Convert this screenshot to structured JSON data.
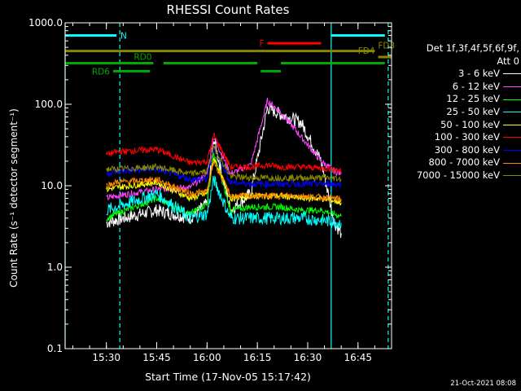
{
  "chart_data": {
    "type": "line",
    "title": "RHESSI Count Rates",
    "xlabel": "Start Time (17-Nov-05 15:17:42)",
    "ylabel": "Count Rate (s⁻¹ detector segment⁻¹)",
    "y_scale": "log",
    "xlim": [
      "15:17:42",
      "16:55:00"
    ],
    "ylim": [
      0.1,
      1000
    ],
    "x_ticks": [
      "15:30",
      "15:45",
      "16:00",
      "16:15",
      "16:30",
      "16:45"
    ],
    "y_ticks": [
      "0.1",
      "1.0",
      "10.0",
      "100.0",
      "1000.0"
    ],
    "legend_header": [
      "Det 1f,3f,4f,5f,6f,9f,",
      "Att 0"
    ],
    "legend_position": "right",
    "series": [
      {
        "name": "3 - 6 keV",
        "color": "#ffffff",
        "x": [
          "15:30",
          "15:33",
          "15:45",
          "15:55",
          "16:00",
          "16:02",
          "16:07",
          "16:13",
          "16:18",
          "16:22",
          "16:28",
          "16:34",
          "16:38",
          "16:40"
        ],
        "values": [
          3.5,
          3.8,
          5.0,
          4.0,
          6.0,
          38,
          5.0,
          8.0,
          90,
          75,
          60,
          20,
          3.5,
          2.6
        ]
      },
      {
        "name": "6 - 12 keV",
        "color": "#ff44ff",
        "x": [
          "15:30",
          "15:33",
          "15:45",
          "15:55",
          "16:00",
          "16:02",
          "16:07",
          "16:13",
          "16:18",
          "16:22",
          "16:28",
          "16:34",
          "16:38",
          "16:40"
        ],
        "values": [
          7.0,
          7.5,
          9.0,
          9.5,
          14,
          40,
          14,
          18,
          110,
          80,
          40,
          20,
          15,
          14
        ]
      },
      {
        "name": "12 - 25 keV",
        "color": "#00ff00",
        "x": [
          "15:30",
          "15:33",
          "15:45",
          "15:55",
          "16:00",
          "16:02",
          "16:07",
          "16:13",
          "16:18",
          "16:22",
          "16:28",
          "16:34",
          "16:38",
          "16:40"
        ],
        "values": [
          4.0,
          4.5,
          7.0,
          4.5,
          6.0,
          25,
          5.0,
          5.5,
          5.5,
          5.5,
          5.0,
          5.0,
          4.5,
          4.2
        ]
      },
      {
        "name": "25 - 50 keV",
        "color": "#00ffff",
        "x": [
          "15:30",
          "15:33",
          "15:45",
          "15:55",
          "16:00",
          "16:02",
          "16:07",
          "16:13",
          "16:18",
          "16:22",
          "16:28",
          "16:34",
          "16:38",
          "16:40"
        ],
        "values": [
          5.0,
          5.5,
          8.0,
          4.0,
          4.5,
          12,
          4.0,
          4.0,
          4.0,
          4.0,
          4.0,
          3.8,
          3.6,
          3.5
        ]
      },
      {
        "name": "50 - 100 keV",
        "color": "#ffff00",
        "x": [
          "15:30",
          "15:33",
          "15:45",
          "15:55",
          "16:00",
          "16:02",
          "16:07",
          "16:13",
          "16:18",
          "16:22",
          "16:28",
          "16:34",
          "16:38",
          "16:40"
        ],
        "values": [
          9.0,
          9.5,
          11,
          7.0,
          8.0,
          22,
          7.0,
          7.5,
          7.5,
          7.5,
          7.0,
          7.0,
          6.5,
          6.2
        ]
      },
      {
        "name": "100 - 300 keV",
        "color": "#ff0000",
        "x": [
          "15:30",
          "15:33",
          "15:45",
          "15:55",
          "16:00",
          "16:02",
          "16:07",
          "16:13",
          "16:18",
          "16:22",
          "16:28",
          "16:34",
          "16:38",
          "16:40"
        ],
        "values": [
          24,
          26,
          28,
          19,
          20,
          42,
          17,
          17,
          18,
          17,
          17,
          16.5,
          16,
          15
        ]
      },
      {
        "name": "300 - 800 keV",
        "color": "#0000ff",
        "x": [
          "15:30",
          "15:33",
          "15:45",
          "15:55",
          "16:00",
          "16:02",
          "16:07",
          "16:13",
          "16:18",
          "16:22",
          "16:28",
          "16:34",
          "16:38",
          "16:40"
        ],
        "values": [
          14,
          15,
          16,
          12,
          12,
          30,
          11,
          10.5,
          10.5,
          10.5,
          10.5,
          10.5,
          10.5,
          10.3
        ]
      },
      {
        "name": "800 - 7000 keV",
        "color": "#ff8800",
        "x": [
          "15:30",
          "15:33",
          "15:45",
          "15:55",
          "16:00",
          "16:02",
          "16:07",
          "16:13",
          "16:18",
          "16:22",
          "16:28",
          "16:34",
          "16:38",
          "16:40"
        ],
        "values": [
          10,
          11,
          12,
          8.0,
          8.5,
          20,
          7.5,
          7.5,
          7.5,
          7.5,
          7.5,
          7.2,
          7.0,
          6.8
        ]
      },
      {
        "name": "7000 - 15000 keV",
        "color": "#888800",
        "x": [
          "15:30",
          "15:33",
          "15:45",
          "15:55",
          "16:00",
          "16:02",
          "16:07",
          "16:13",
          "16:18",
          "16:22",
          "16:28",
          "16:34",
          "16:38",
          "16:40"
        ],
        "values": [
          16,
          16,
          17,
          14,
          15,
          30,
          13,
          12.5,
          12.5,
          12.5,
          12.5,
          12.5,
          12.5,
          12
        ]
      }
    ],
    "annotations": [
      {
        "label": "N",
        "color": "#00ffff",
        "y": 700,
        "segments": [
          [
            "15:17:42",
            "15:33"
          ],
          [
            "16:37",
            "16:53"
          ]
        ]
      },
      {
        "label": "F",
        "color": "#ff0000",
        "y": 560,
        "segments": [
          [
            "16:18",
            "16:34"
          ]
        ]
      },
      {
        "label": "FD3",
        "color": "#888800",
        "y": 450,
        "segments": [
          [
            "15:17:42",
            "16:50"
          ]
        ]
      },
      {
        "label": "FD4",
        "color": "#888800",
        "y": 380,
        "segments": [
          [
            "16:51",
            "16:55"
          ]
        ]
      },
      {
        "label": "RD0",
        "color": "#00aa00",
        "y": 320,
        "segments": [
          [
            "15:17:42",
            "15:44"
          ],
          [
            "15:47",
            "16:15"
          ],
          [
            "16:22",
            "16:53"
          ]
        ]
      },
      {
        "label": "RD6",
        "color": "#00aa00",
        "y": 255,
        "segments": [
          [
            "15:32",
            "15:43"
          ],
          [
            "16:16",
            "16:22"
          ]
        ]
      }
    ],
    "vertical_markers": [
      {
        "color": "#00ffff",
        "style": "solid",
        "x": "15:17:42"
      },
      {
        "color": "#00ffff",
        "style": "dashed",
        "x": "15:34"
      },
      {
        "color": "#00ffff",
        "style": "solid",
        "x": "16:37"
      },
      {
        "color": "#00ffff",
        "style": "dashed",
        "x": "16:54"
      }
    ]
  },
  "timestamp": "21-Oct-2021 08:08"
}
